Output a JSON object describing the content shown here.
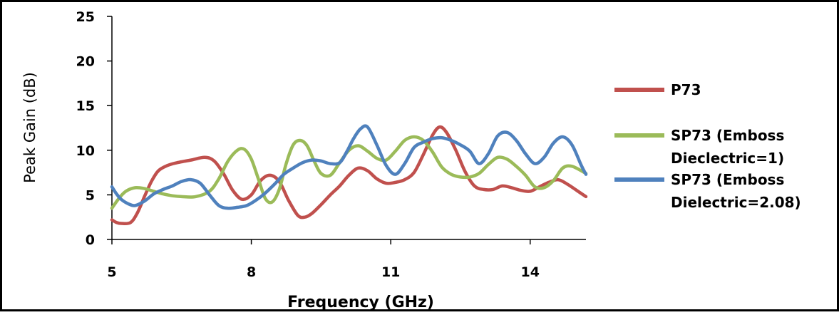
{
  "chart_data": {
    "type": "line",
    "title": "",
    "xlabel": "Frequency (GHz)",
    "ylabel": "Peak Gain (dB)",
    "xlim": [
      5,
      15.2
    ],
    "ylim": [
      0,
      25
    ],
    "x_ticks": [
      "5",
      "8",
      "11",
      "14"
    ],
    "y_ticks": [
      "0",
      "5",
      "10",
      "15",
      "20",
      "25"
    ],
    "grid": false,
    "legend_position": "right",
    "series": [
      {
        "name": "P73",
        "legend_lines": [
          "P73"
        ],
        "color": "#c0504d",
        "x": [
          5.0,
          5.1,
          5.2,
          5.4,
          5.55,
          5.7,
          5.85,
          6.0,
          6.2,
          6.4,
          6.7,
          7.0,
          7.2,
          7.4,
          7.6,
          7.8,
          8.0,
          8.2,
          8.4,
          8.6,
          8.8,
          9.0,
          9.15,
          9.3,
          9.5,
          9.7,
          9.9,
          10.1,
          10.3,
          10.5,
          10.7,
          10.9,
          11.1,
          11.3,
          11.5,
          11.7,
          11.9,
          12.05,
          12.2,
          12.4,
          12.6,
          12.8,
          13.0,
          13.2,
          13.4,
          13.6,
          13.8,
          14.0,
          14.2,
          14.4,
          14.6,
          14.8,
          15.0,
          15.2
        ],
        "y": [
          2.2,
          1.9,
          1.8,
          1.9,
          3.0,
          4.8,
          6.5,
          7.7,
          8.3,
          8.6,
          8.9,
          9.2,
          8.8,
          7.4,
          5.5,
          4.5,
          5.0,
          6.6,
          7.2,
          6.5,
          4.4,
          2.7,
          2.5,
          2.9,
          3.9,
          5.0,
          6.0,
          7.2,
          8.0,
          7.7,
          6.8,
          6.3,
          6.4,
          6.7,
          7.5,
          9.5,
          11.7,
          12.6,
          12.0,
          10.0,
          7.6,
          6.0,
          5.6,
          5.6,
          6.0,
          5.8,
          5.5,
          5.4,
          5.9,
          6.4,
          6.7,
          6.2,
          5.5,
          4.8
        ]
      },
      {
        "name": "SP73 (Emboss Dieclectric=1)",
        "legend_lines": [
          "SP73 (Emboss",
          "Dieclectric=1)"
        ],
        "color": "#9bbb59",
        "x": [
          5.0,
          5.15,
          5.3,
          5.5,
          5.7,
          5.9,
          6.1,
          6.3,
          6.5,
          6.8,
          7.1,
          7.3,
          7.5,
          7.7,
          7.85,
          8.0,
          8.15,
          8.3,
          8.45,
          8.6,
          8.75,
          8.9,
          9.05,
          9.2,
          9.35,
          9.5,
          9.7,
          9.9,
          10.1,
          10.3,
          10.5,
          10.7,
          10.9,
          11.1,
          11.3,
          11.5,
          11.7,
          11.9,
          12.1,
          12.3,
          12.5,
          12.7,
          12.9,
          13.1,
          13.3,
          13.5,
          13.7,
          13.9,
          14.1,
          14.3,
          14.5,
          14.7,
          14.9,
          15.2
        ],
        "y": [
          3.5,
          4.6,
          5.4,
          5.8,
          5.7,
          5.4,
          5.1,
          4.9,
          4.8,
          4.8,
          5.4,
          6.8,
          8.8,
          10.0,
          10.1,
          9.0,
          6.8,
          4.6,
          4.2,
          5.6,
          8.5,
          10.6,
          11.1,
          10.5,
          8.8,
          7.4,
          7.2,
          8.6,
          10.0,
          10.5,
          9.9,
          9.1,
          8.9,
          9.9,
          11.1,
          11.5,
          11.1,
          9.8,
          8.1,
          7.3,
          7.0,
          7.0,
          7.4,
          8.4,
          9.2,
          9.0,
          8.2,
          7.2,
          5.9,
          5.8,
          6.6,
          8.0,
          8.2,
          7.4
        ]
      },
      {
        "name": "SP73 (Emboss Dielectric=2.08)",
        "legend_lines": [
          "SP73 (Emboss",
          "Dielectric=2.08)"
        ],
        "color": "#4f81bd",
        "x": [
          5.0,
          5.1,
          5.2,
          5.35,
          5.5,
          5.7,
          5.9,
          6.1,
          6.3,
          6.5,
          6.7,
          6.9,
          7.1,
          7.3,
          7.5,
          7.7,
          7.9,
          8.1,
          8.3,
          8.5,
          8.7,
          8.9,
          9.1,
          9.3,
          9.5,
          9.7,
          9.9,
          10.05,
          10.2,
          10.35,
          10.5,
          10.7,
          10.9,
          11.1,
          11.3,
          11.5,
          11.7,
          11.9,
          12.1,
          12.3,
          12.5,
          12.7,
          12.9,
          13.1,
          13.3,
          13.5,
          13.7,
          13.9,
          14.1,
          14.3,
          14.5,
          14.7,
          14.9,
          15.1,
          15.2
        ],
        "y": [
          5.9,
          5.1,
          4.5,
          4.0,
          3.8,
          4.3,
          5.1,
          5.6,
          6.0,
          6.5,
          6.7,
          6.3,
          5.0,
          3.8,
          3.5,
          3.6,
          3.8,
          4.4,
          5.2,
          6.2,
          7.3,
          8.0,
          8.6,
          8.9,
          8.8,
          8.5,
          8.6,
          9.8,
          11.3,
          12.4,
          12.6,
          10.6,
          8.3,
          7.3,
          8.5,
          10.3,
          10.9,
          11.3,
          11.4,
          11.1,
          10.6,
          9.9,
          8.5,
          9.6,
          11.6,
          12.0,
          11.1,
          9.6,
          8.5,
          9.2,
          10.8,
          11.5,
          10.6,
          8.3,
          7.3
        ]
      }
    ]
  }
}
